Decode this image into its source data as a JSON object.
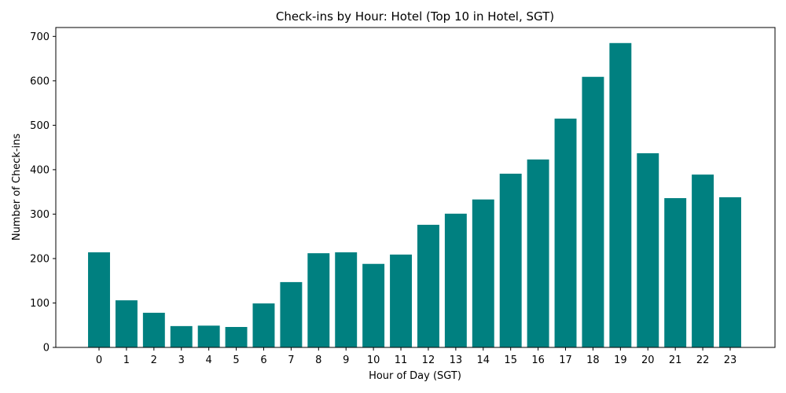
{
  "chart_data": {
    "type": "bar",
    "title": "Check-ins by Hour: Hotel (Top 10 in Hotel, SGT)",
    "xlabel": "Hour of Day (SGT)",
    "ylabel": "Number of Check-ins",
    "categories": [
      "0",
      "1",
      "2",
      "3",
      "4",
      "5",
      "6",
      "7",
      "8",
      "9",
      "10",
      "11",
      "12",
      "13",
      "14",
      "15",
      "16",
      "17",
      "18",
      "19",
      "20",
      "21",
      "22",
      "23"
    ],
    "values": [
      214,
      106,
      78,
      48,
      49,
      46,
      99,
      147,
      212,
      214,
      188,
      209,
      276,
      301,
      333,
      391,
      423,
      515,
      609,
      685,
      437,
      336,
      389,
      338
    ],
    "ylim": [
      0,
      720
    ],
    "yticks": [
      0,
      100,
      200,
      300,
      400,
      500,
      600,
      700
    ],
    "bar_color": "#008080",
    "grid": false,
    "legend": "none"
  }
}
